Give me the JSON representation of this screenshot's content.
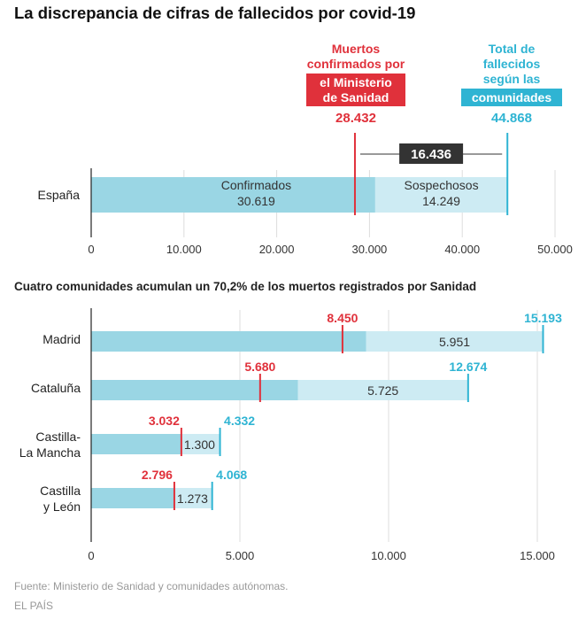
{
  "title": "La discrepancia de cifras de fallecidos por covid-19",
  "source": "Fuente: Ministerio de Sanidad y comunidades autónomas.",
  "credit": "EL PAÍS",
  "colors": {
    "confirmed_bar": "#9ad6e4",
    "suspected_bar": "#cdebf3",
    "ministry_red": "#e0313b",
    "communities_blue": "#2fb4d3",
    "difference_label_bg": "#333333",
    "axis": "#222222",
    "grid": "#dddddd"
  },
  "top_annotations": {
    "ministry_lines": [
      "Muertos",
      "confirmados por"
    ],
    "ministry_highlight_lines": [
      "el Ministerio",
      "de Sanidad"
    ],
    "ministry_value": "28.432",
    "communities_lines": [
      "Total de",
      "fallecidos",
      "según las"
    ],
    "communities_highlight_lines": [
      "comunidades"
    ],
    "communities_value": "44.868",
    "difference": "16.436",
    "confirmed_label": "Confirmados",
    "confirmed_value": "30.619",
    "suspected_label": "Sospechosos",
    "suspected_value": "14.249"
  },
  "chart_data": [
    {
      "type": "bar",
      "orientation": "horizontal",
      "stacked": true,
      "title": "La discrepancia de cifras de fallecidos por covid-19",
      "categories": [
        "España"
      ],
      "series": [
        {
          "name": "Confirmados",
          "values": [
            30619
          ]
        },
        {
          "name": "Sospechosos",
          "values": [
            14249
          ]
        }
      ],
      "markers": {
        "ministry": [
          28432
        ],
        "communities": [
          44868
        ]
      },
      "difference": 16436,
      "xlim": [
        0,
        50000
      ],
      "xticks": [
        0,
        10000,
        20000,
        30000,
        40000,
        50000
      ],
      "xtick_labels": [
        "0",
        "10.000",
        "20.000",
        "30.000",
        "40.000",
        "50.000"
      ],
      "grid": true
    },
    {
      "type": "bar",
      "orientation": "horizontal",
      "stacked": true,
      "title": "Cuatro comunidades acumulan un 70,2% de los muertos registrados por Sanidad",
      "categories": [
        "Madrid",
        "Cataluña",
        "Castilla-La Mancha",
        "Castilla y León"
      ],
      "category_lines": [
        [
          "Madrid"
        ],
        [
          "Cataluña"
        ],
        [
          "Castilla-",
          "La Mancha"
        ],
        [
          "Castilla",
          "y León"
        ]
      ],
      "series": [
        {
          "name": "Confirmados",
          "values": [
            9242,
            6949,
            3032,
            2795
          ]
        },
        {
          "name": "Sospechosos",
          "values": [
            5951,
            5725,
            1300,
            1273
          ]
        }
      ],
      "markers": {
        "ministry": [
          8450,
          5680,
          3032,
          2796
        ],
        "communities": [
          15193,
          12674,
          4332,
          4068
        ]
      },
      "ministry_labels": [
        "8.450",
        "5.680",
        "3.032",
        "2.796"
      ],
      "communities_labels": [
        "15.193",
        "12.674",
        "4.332",
        "4.068"
      ],
      "suspected_labels": [
        "5.951",
        "5.725",
        "1.300",
        "1.273"
      ],
      "xlim": [
        0,
        15000
      ],
      "xticks": [
        0,
        5000,
        10000,
        15000
      ],
      "xtick_labels": [
        "0",
        "5.000",
        "10.000",
        "15.000"
      ],
      "grid": true
    }
  ]
}
